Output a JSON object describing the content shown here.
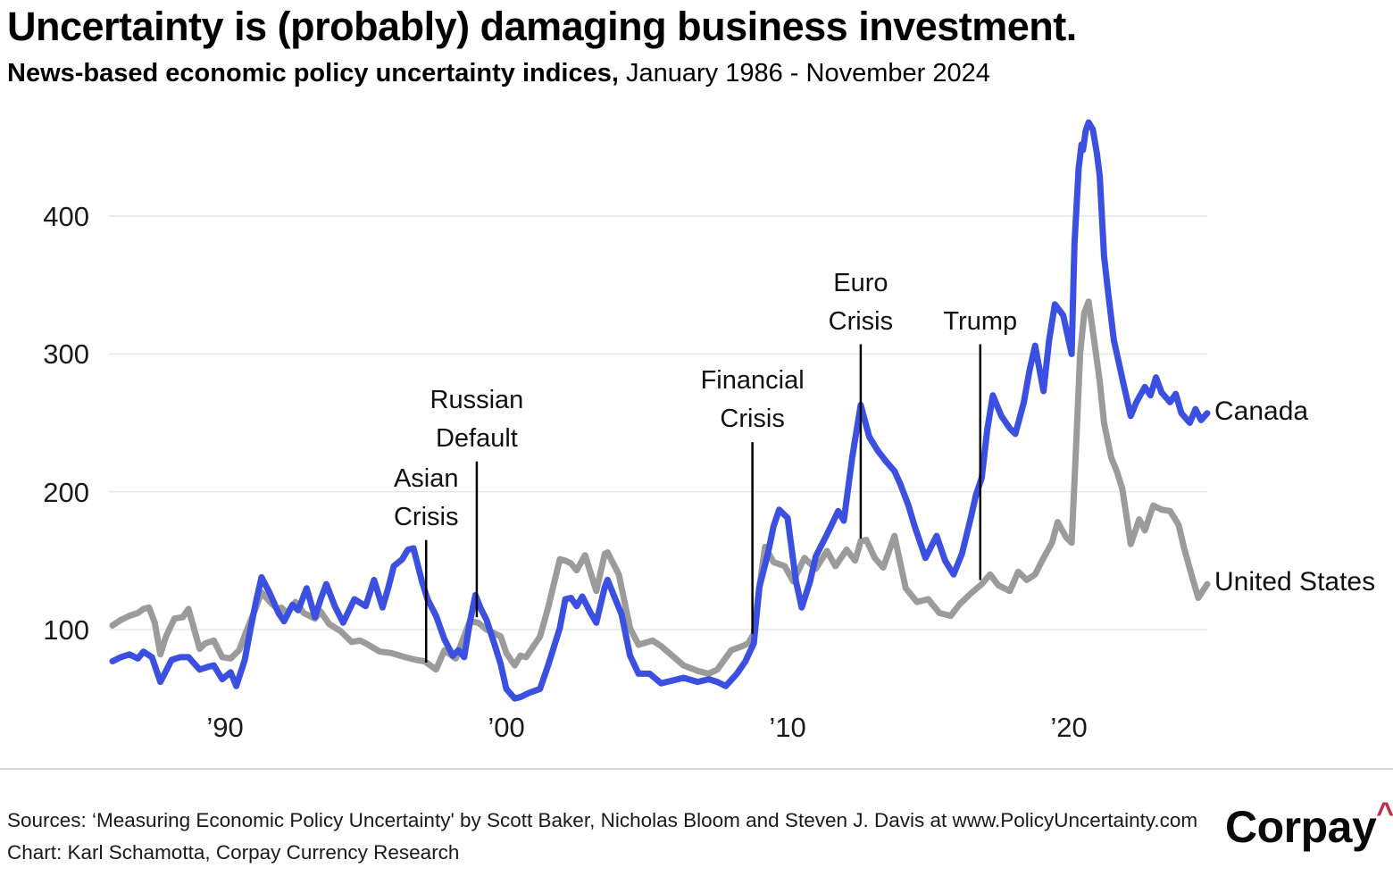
{
  "header": {
    "title": "Uncertainty is (probably) damaging business investment.",
    "subtitle_bold": "News-based economic policy uncertainty indices,",
    "subtitle_rest": " January 1986 - November 2024"
  },
  "chart_data": {
    "type": "line",
    "title": "Uncertainty is (probably) damaging business investment.",
    "subtitle": "News-based economic policy uncertainty indices, January 1986 - November 2024",
    "xlabel": "",
    "ylabel": "",
    "x_range": [
      1986.0,
      2024.92
    ],
    "ylim": [
      40,
      480
    ],
    "grid": "horizontal",
    "legend_position": "right-of-line-ends",
    "y_ticks": [
      100,
      200,
      300,
      400
    ],
    "x_ticks": [
      {
        "label": "’90",
        "year": 1990
      },
      {
        "label": "’00",
        "year": 2000
      },
      {
        "label": "’10",
        "year": 2010
      },
      {
        "label": "’20",
        "year": 2020
      }
    ],
    "grid_color": "#e7e7e7",
    "annotation_line_color": "#000000",
    "series": [
      {
        "name": "United States",
        "color": "#9b9b9b",
        "label_value": 133,
        "points": [
          [
            1986.0,
            103
          ],
          [
            1986.3,
            107
          ],
          [
            1986.6,
            110
          ],
          [
            1986.9,
            112
          ],
          [
            1987.1,
            115
          ],
          [
            1987.3,
            116
          ],
          [
            1987.5,
            105
          ],
          [
            1987.7,
            82
          ],
          [
            1987.9,
            95
          ],
          [
            1988.2,
            108
          ],
          [
            1988.5,
            109
          ],
          [
            1988.7,
            115
          ],
          [
            1989.1,
            86
          ],
          [
            1989.3,
            90
          ],
          [
            1989.6,
            92
          ],
          [
            1989.9,
            80
          ],
          [
            1990.2,
            79
          ],
          [
            1990.5,
            85
          ],
          [
            1990.8,
            101
          ],
          [
            1991.1,
            116
          ],
          [
            1991.3,
            127
          ],
          [
            1991.6,
            120
          ],
          [
            1991.9,
            114
          ],
          [
            1992.0,
            116
          ],
          [
            1992.2,
            112
          ],
          [
            1992.5,
            120
          ],
          [
            1992.8,
            112
          ],
          [
            1993.2,
            108
          ],
          [
            1993.4,
            113
          ],
          [
            1993.7,
            104
          ],
          [
            1994.1,
            99
          ],
          [
            1994.5,
            91
          ],
          [
            1994.8,
            92
          ],
          [
            1995.0,
            90
          ],
          [
            1995.5,
            84
          ],
          [
            1995.9,
            83
          ],
          [
            1996.4,
            80
          ],
          [
            1996.8,
            78
          ],
          [
            1997.1,
            77
          ],
          [
            1997.5,
            71
          ],
          [
            1997.8,
            85
          ],
          [
            1998.2,
            79
          ],
          [
            1998.7,
            106
          ],
          [
            1999.0,
            105
          ],
          [
            1999.3,
            100
          ],
          [
            1999.5,
            98
          ],
          [
            1999.8,
            95
          ],
          [
            2000.0,
            83
          ],
          [
            2000.3,
            74
          ],
          [
            2000.5,
            81
          ],
          [
            2000.7,
            80
          ],
          [
            2001.2,
            95
          ],
          [
            2001.5,
            117
          ],
          [
            2001.9,
            151
          ],
          [
            2002.1,
            150
          ],
          [
            2002.3,
            148
          ],
          [
            2002.5,
            143
          ],
          [
            2002.8,
            154
          ],
          [
            2003.2,
            128
          ],
          [
            2003.5,
            155
          ],
          [
            2003.6,
            156
          ],
          [
            2004.0,
            140
          ],
          [
            2004.4,
            101
          ],
          [
            2004.7,
            89
          ],
          [
            2005.2,
            92
          ],
          [
            2005.5,
            88
          ],
          [
            2005.9,
            81
          ],
          [
            2006.3,
            74
          ],
          [
            2006.8,
            70
          ],
          [
            2007.2,
            68
          ],
          [
            2007.5,
            71
          ],
          [
            2008.0,
            85
          ],
          [
            2008.4,
            88
          ],
          [
            2008.6,
            90
          ],
          [
            2008.8,
            97
          ],
          [
            2008.95,
            124
          ],
          [
            2009.2,
            160
          ],
          [
            2009.5,
            149
          ],
          [
            2009.9,
            146
          ],
          [
            2010.2,
            135
          ],
          [
            2010.6,
            152
          ],
          [
            2011.0,
            144
          ],
          [
            2011.4,
            157
          ],
          [
            2011.7,
            146
          ],
          [
            2012.1,
            158
          ],
          [
            2012.4,
            150
          ],
          [
            2012.6,
            164
          ],
          [
            2012.8,
            165
          ],
          [
            2013.1,
            152
          ],
          [
            2013.4,
            145
          ],
          [
            2013.8,
            168
          ],
          [
            2014.2,
            130
          ],
          [
            2014.6,
            120
          ],
          [
            2015.0,
            122
          ],
          [
            2015.4,
            112
          ],
          [
            2015.8,
            110
          ],
          [
            2016.1,
            118
          ],
          [
            2016.5,
            126
          ],
          [
            2016.9,
            133
          ],
          [
            2017.2,
            140
          ],
          [
            2017.5,
            132
          ],
          [
            2017.9,
            128
          ],
          [
            2018.2,
            142
          ],
          [
            2018.5,
            136
          ],
          [
            2018.8,
            140
          ],
          [
            2019.1,
            152
          ],
          [
            2019.4,
            163
          ],
          [
            2019.6,
            178
          ],
          [
            2019.9,
            167
          ],
          [
            2020.1,
            163
          ],
          [
            2020.25,
            230
          ],
          [
            2020.4,
            300
          ],
          [
            2020.55,
            330
          ],
          [
            2020.7,
            338
          ],
          [
            2020.85,
            317
          ],
          [
            2021.1,
            280
          ],
          [
            2021.25,
            250
          ],
          [
            2021.5,
            225
          ],
          [
            2021.7,
            215
          ],
          [
            2021.9,
            202
          ],
          [
            2022.2,
            162
          ],
          [
            2022.5,
            180
          ],
          [
            2022.7,
            172
          ],
          [
            2023.0,
            190
          ],
          [
            2023.3,
            187
          ],
          [
            2023.6,
            186
          ],
          [
            2023.9,
            176
          ],
          [
            2024.1,
            159
          ],
          [
            2024.4,
            137
          ],
          [
            2024.6,
            123
          ],
          [
            2024.92,
            133
          ]
        ]
      },
      {
        "name": "Canada",
        "color": "#3b4fe1",
        "label_value": 257,
        "points": [
          [
            1986.0,
            77
          ],
          [
            1986.3,
            80
          ],
          [
            1986.6,
            82
          ],
          [
            1986.9,
            79
          ],
          [
            1987.1,
            84
          ],
          [
            1987.4,
            80
          ],
          [
            1987.7,
            62
          ],
          [
            1987.9,
            70
          ],
          [
            1988.1,
            78
          ],
          [
            1988.4,
            80
          ],
          [
            1988.7,
            80
          ],
          [
            1989.1,
            71
          ],
          [
            1989.4,
            73
          ],
          [
            1989.6,
            74
          ],
          [
            1989.9,
            64
          ],
          [
            1990.2,
            69
          ],
          [
            1990.4,
            59
          ],
          [
            1990.7,
            78
          ],
          [
            1990.9,
            100
          ],
          [
            1991.1,
            120
          ],
          [
            1991.3,
            138
          ],
          [
            1991.6,
            126
          ],
          [
            1991.9,
            112
          ],
          [
            1992.1,
            106
          ],
          [
            1992.4,
            118
          ],
          [
            1992.6,
            114
          ],
          [
            1992.9,
            130
          ],
          [
            1993.2,
            109
          ],
          [
            1993.4,
            122
          ],
          [
            1993.6,
            133
          ],
          [
            1993.9,
            117
          ],
          [
            1994.2,
            105
          ],
          [
            1994.6,
            122
          ],
          [
            1995.0,
            117
          ],
          [
            1995.3,
            136
          ],
          [
            1995.6,
            116
          ],
          [
            1995.8,
            130
          ],
          [
            1996.0,
            146
          ],
          [
            1996.3,
            151
          ],
          [
            1996.5,
            158
          ],
          [
            1996.7,
            159
          ],
          [
            1997.0,
            135
          ],
          [
            1997.2,
            122
          ],
          [
            1997.5,
            110
          ],
          [
            1997.8,
            93
          ],
          [
            1998.1,
            81
          ],
          [
            1998.3,
            85
          ],
          [
            1998.5,
            80
          ],
          [
            1998.7,
            105
          ],
          [
            1998.9,
            125
          ],
          [
            1999.1,
            115
          ],
          [
            1999.3,
            107
          ],
          [
            1999.6,
            88
          ],
          [
            1999.8,
            75
          ],
          [
            2000.0,
            57
          ],
          [
            2000.3,
            50
          ],
          [
            2000.5,
            51
          ],
          [
            2000.8,
            54
          ],
          [
            2001.2,
            57
          ],
          [
            2001.5,
            75
          ],
          [
            2001.9,
            101
          ],
          [
            2002.1,
            122
          ],
          [
            2002.3,
            123
          ],
          [
            2002.5,
            117
          ],
          [
            2002.7,
            124
          ],
          [
            2003.0,
            112
          ],
          [
            2003.2,
            105
          ],
          [
            2003.5,
            131
          ],
          [
            2003.6,
            136
          ],
          [
            2004.1,
            111
          ],
          [
            2004.4,
            81
          ],
          [
            2004.7,
            68
          ],
          [
            2005.1,
            68
          ],
          [
            2005.5,
            61
          ],
          [
            2005.9,
            63
          ],
          [
            2006.3,
            65
          ],
          [
            2006.8,
            62
          ],
          [
            2007.2,
            64
          ],
          [
            2007.5,
            62
          ],
          [
            2007.8,
            59
          ],
          [
            2008.2,
            68
          ],
          [
            2008.5,
            77
          ],
          [
            2008.8,
            90
          ],
          [
            2009.0,
            131
          ],
          [
            2009.3,
            155
          ],
          [
            2009.5,
            175
          ],
          [
            2009.7,
            187
          ],
          [
            2010.0,
            181
          ],
          [
            2010.3,
            135
          ],
          [
            2010.5,
            116
          ],
          [
            2010.8,
            135
          ],
          [
            2011.0,
            153
          ],
          [
            2011.4,
            169
          ],
          [
            2011.8,
            186
          ],
          [
            2012.0,
            179
          ],
          [
            2012.3,
            225
          ],
          [
            2012.6,
            263
          ],
          [
            2012.9,
            240
          ],
          [
            2013.2,
            230
          ],
          [
            2013.5,
            222
          ],
          [
            2013.8,
            215
          ],
          [
            2014.0,
            206
          ],
          [
            2014.3,
            190
          ],
          [
            2014.5,
            176
          ],
          [
            2014.9,
            152
          ],
          [
            2015.3,
            168
          ],
          [
            2015.6,
            150
          ],
          [
            2015.9,
            140
          ],
          [
            2016.2,
            155
          ],
          [
            2016.5,
            180
          ],
          [
            2016.7,
            198
          ],
          [
            2016.9,
            210
          ],
          [
            2017.1,
            245
          ],
          [
            2017.3,
            270
          ],
          [
            2017.6,
            255
          ],
          [
            2017.9,
            246
          ],
          [
            2018.1,
            242
          ],
          [
            2018.4,
            265
          ],
          [
            2018.6,
            288
          ],
          [
            2018.8,
            306
          ],
          [
            2019.1,
            273
          ],
          [
            2019.3,
            310
          ],
          [
            2019.5,
            336
          ],
          [
            2019.8,
            328
          ],
          [
            2020.1,
            300
          ],
          [
            2020.2,
            380
          ],
          [
            2020.35,
            435
          ],
          [
            2020.45,
            452
          ],
          [
            2020.5,
            448
          ],
          [
            2020.6,
            462
          ],
          [
            2020.7,
            468
          ],
          [
            2020.85,
            463
          ],
          [
            2021.0,
            445
          ],
          [
            2021.1,
            429
          ],
          [
            2021.25,
            371
          ],
          [
            2021.4,
            344
          ],
          [
            2021.6,
            310
          ],
          [
            2021.9,
            282
          ],
          [
            2022.2,
            255
          ],
          [
            2022.4,
            265
          ],
          [
            2022.7,
            276
          ],
          [
            2022.9,
            270
          ],
          [
            2023.1,
            283
          ],
          [
            2023.3,
            272
          ],
          [
            2023.6,
            265
          ],
          [
            2023.8,
            271
          ],
          [
            2024.0,
            257
          ],
          [
            2024.3,
            250
          ],
          [
            2024.5,
            260
          ],
          [
            2024.7,
            252
          ],
          [
            2024.92,
            257
          ]
        ]
      }
    ],
    "annotations": [
      {
        "lines": [
          "Asian",
          "Crisis"
        ],
        "year": 1997.15,
        "line_top": 165,
        "line_bottom": 76
      },
      {
        "lines": [
          "Russian",
          "Default"
        ],
        "year": 1998.95,
        "line_top": 222,
        "line_bottom": 109
      },
      {
        "lines": [
          "Financial",
          "Crisis"
        ],
        "year": 2008.75,
        "line_top": 236,
        "line_bottom": 97
      },
      {
        "lines": [
          "Euro",
          "Crisis"
        ],
        "year": 2012.6,
        "line_top": 307,
        "line_bottom": 166
      },
      {
        "lines": [
          "Trump"
        ],
        "year": 2016.85,
        "line_top": 307,
        "line_bottom": 136
      }
    ]
  },
  "footer": {
    "sources_line1": "Sources: ‘Measuring Economic Policy Uncertainty' by Scott Baker, Nicholas Bloom and Steven J. Davis at www.PolicyUncertainty.com",
    "sources_line2": "Chart: Karl Schamotta, Corpay Currency Research",
    "logo_text": "Corpay",
    "logo_caret": "^",
    "logo_caret_color": "#c62a49"
  }
}
